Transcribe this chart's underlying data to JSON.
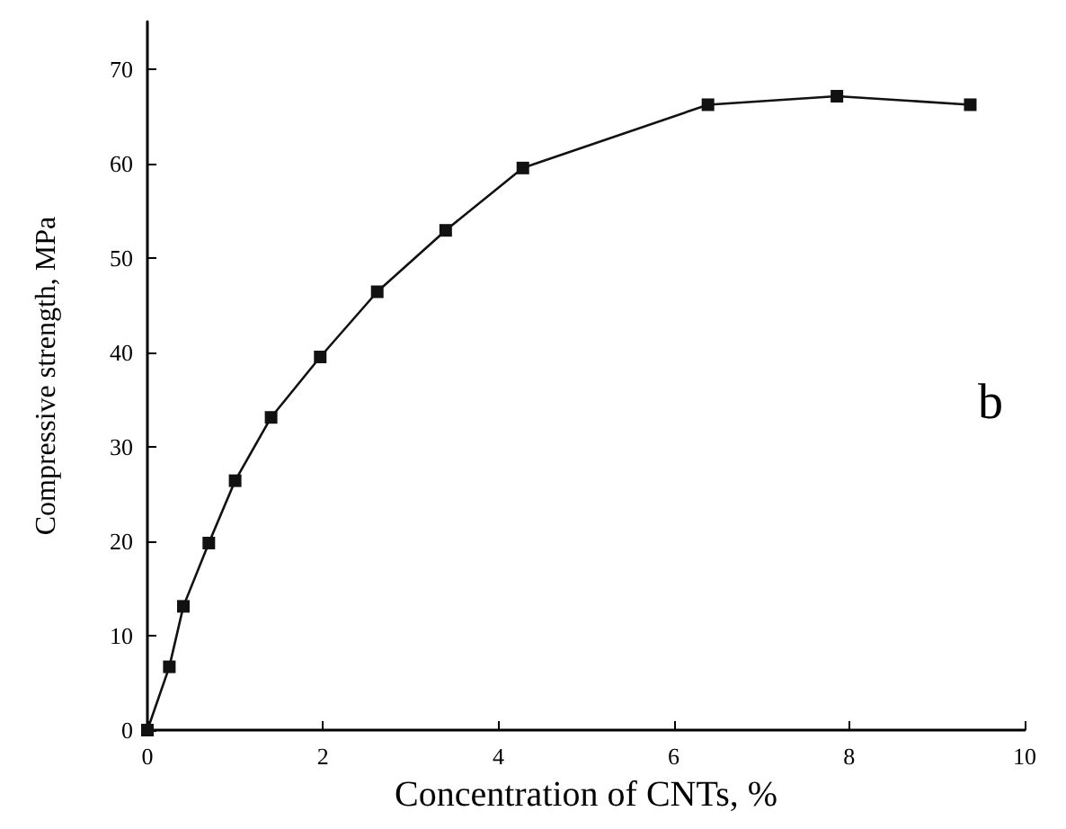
{
  "chart_data": {
    "type": "line",
    "xlabel": "Concentration of CNTs, %",
    "ylabel": "Compressive strength, MPa",
    "x": [
      0,
      0.25,
      0.41,
      0.7,
      1.0,
      1.41,
      1.97,
      2.62,
      3.4,
      4.28,
      6.39,
      7.86,
      9.38
    ],
    "series": [
      {
        "color": "#111111",
        "values": [
          0,
          6.7,
          13.1,
          19.8,
          26.4,
          33.1,
          39.5,
          46.4,
          52.9,
          59.5,
          66.2,
          67.1,
          66.2
        ]
      }
    ],
    "xlim": [
      0,
      10
    ],
    "xticks": [
      0,
      2,
      4,
      6,
      8,
      10
    ],
    "ylim": [
      0,
      75
    ],
    "yticks": [
      0,
      10,
      20,
      30,
      40,
      50,
      60,
      70
    ],
    "annotations": [
      "b"
    ],
    "marker": "square",
    "line_style": "solid"
  }
}
